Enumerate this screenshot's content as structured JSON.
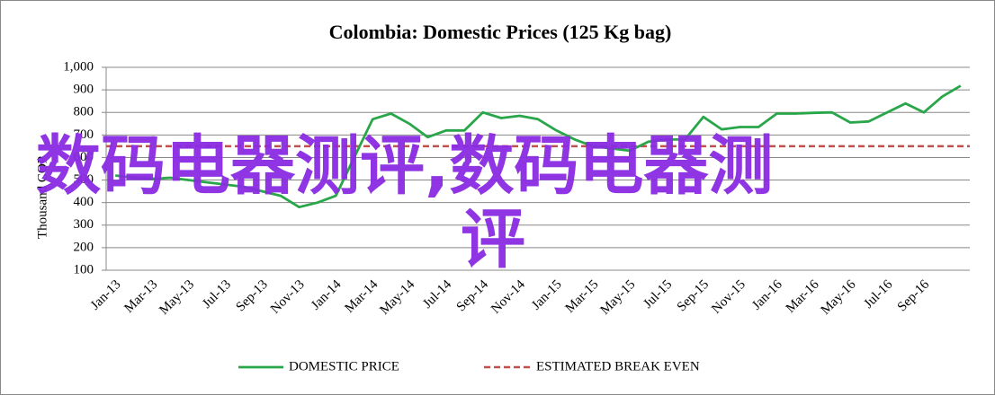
{
  "chart_data": {
    "type": "line",
    "title": "Colombia: Domestic Prices (125 Kg bag)",
    "y_label": "Thousand COP",
    "categories": [
      "Jan-13",
      null,
      "Mar-13",
      null,
      "May-13",
      null,
      "Jul-13",
      null,
      "Sep-13",
      null,
      "Nov-13",
      null,
      "Jan-14",
      null,
      "Mar-14",
      null,
      "May-14",
      null,
      "Jul-14",
      null,
      "Sep-14",
      null,
      "Nov-14",
      null,
      "Jan-15",
      null,
      "Mar-15",
      null,
      "May-15",
      null,
      "Jul-15",
      null,
      "Sep-15",
      null,
      "Nov-15",
      null,
      "Jan-16",
      null,
      "Mar-16",
      null,
      "May-16",
      null,
      "Jul-16",
      null,
      "Sep-16",
      null,
      null
    ],
    "series": [
      {
        "name": "DOMESTIC PRICE",
        "color": "#2aa64a",
        "values": [
          520,
          510,
          505,
          510,
          500,
          490,
          480,
          470,
          450,
          430,
          380,
          400,
          430,
          600,
          770,
          795,
          750,
          690,
          720,
          720,
          800,
          775,
          785,
          770,
          720,
          680,
          650,
          640,
          630,
          670,
          680,
          680,
          780,
          725,
          735,
          735,
          795,
          795,
          798,
          800,
          755,
          760,
          800,
          840,
          800,
          870,
          918
        ]
      }
    ],
    "reference_line": {
      "name": "ESTIMATED BREAK EVEN",
      "value": 650,
      "color": "#c0504d",
      "dashed": true
    },
    "ylim": [
      100,
      1000
    ],
    "yticks": [
      100,
      200,
      300,
      400,
      500,
      600,
      700,
      800,
      900,
      {
        "value": 1000,
        "label": "1,000"
      }
    ],
    "grid": true,
    "legend": "bottom",
    "watermark": [
      "数码电器测评,数码电器测",
      "评"
    ]
  }
}
